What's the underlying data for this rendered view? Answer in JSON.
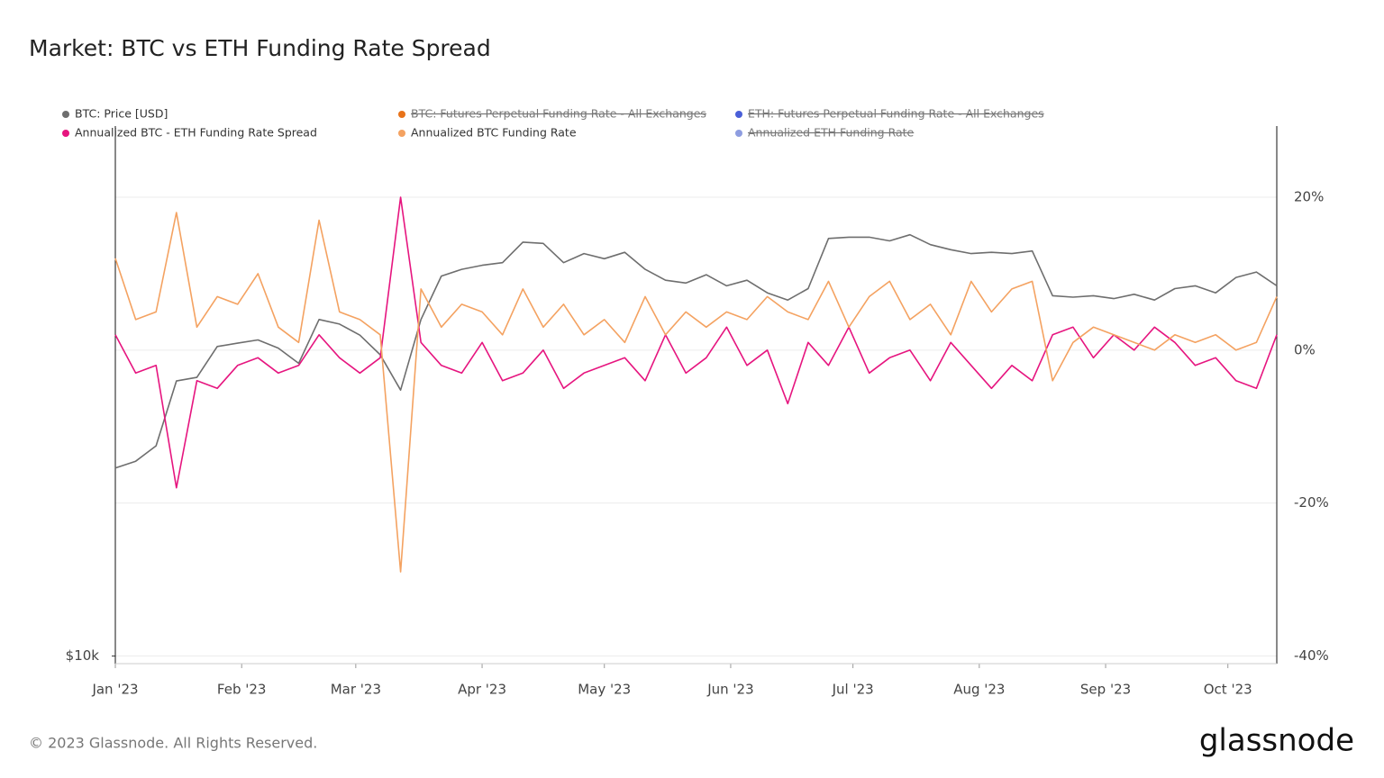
{
  "chart_data": {
    "type": "line",
    "title": "Market: BTC vs ETH Funding Rate Spread",
    "footer": "© 2023 Glassnode. All Rights Reserved.",
    "brand": "glassnode",
    "x": [
      0,
      5,
      10,
      15,
      20,
      25,
      30,
      35,
      40,
      45,
      50,
      55,
      60,
      65,
      70,
      75,
      80,
      85,
      90,
      95,
      100,
      105,
      110,
      115,
      120,
      125,
      130,
      135,
      140,
      145,
      150,
      155,
      160,
      165,
      170,
      175,
      180,
      185,
      190,
      195,
      200,
      205,
      210,
      215,
      220,
      225,
      230,
      235,
      240,
      245,
      250,
      255,
      260,
      265,
      270,
      275,
      280,
      285
    ],
    "xlim": [
      0,
      285
    ],
    "xticks": [
      {
        "value": 0,
        "label": "Jan '23"
      },
      {
        "value": 31,
        "label": "Feb '23"
      },
      {
        "value": 59,
        "label": "Mar '23"
      },
      {
        "value": 90,
        "label": "Apr '23"
      },
      {
        "value": 120,
        "label": "May '23"
      },
      {
        "value": 151,
        "label": "Jun '23"
      },
      {
        "value": 181,
        "label": "Jul '23"
      },
      {
        "value": 212,
        "label": "Aug '23"
      },
      {
        "value": 243,
        "label": "Sep '23"
      },
      {
        "value": 273,
        "label": "Oct '23"
      }
    ],
    "ylim": [
      9800,
      41000
    ],
    "ylog": true,
    "yticks": [
      {
        "value": 10000,
        "label": "$10k"
      }
    ],
    "y2lim": [
      -41,
      29.3
    ],
    "y2ticks": [
      {
        "value": 20,
        "label": "20%"
      },
      {
        "value": 0,
        "label": "0%"
      },
      {
        "value": -20,
        "label": "-20%"
      },
      {
        "value": -40,
        "label": "-40%"
      }
    ],
    "grid": true,
    "series": [
      {
        "name": "BTC: Price [USD]",
        "color": "#6e6e6e",
        "axis": "y",
        "values": [
          16500,
          16800,
          17500,
          20800,
          21000,
          22800,
          23000,
          23200,
          22700,
          21800,
          24500,
          24200,
          23500,
          22300,
          20300,
          24500,
          27500,
          28000,
          28300,
          28500,
          30100,
          30000,
          28500,
          29200,
          28800,
          29300,
          28000,
          27200,
          27000,
          27600,
          26800,
          27200,
          26300,
          25800,
          26600,
          30400,
          30500,
          30500,
          30200,
          30700,
          29900,
          29500,
          29200,
          29300,
          29200,
          29400,
          26100,
          26000,
          26100,
          25900,
          26200,
          25800,
          26600,
          26800,
          26300,
          27400,
          27800,
          26800
        ]
      },
      {
        "name": "Annualized BTC - ETH Funding Rate Spread",
        "color": "#e6157f",
        "axis": "y2",
        "values": [
          2,
          -3,
          -2,
          -18,
          -4,
          -5,
          -2,
          -1,
          -3,
          -2,
          2,
          -1,
          -3,
          -1,
          20,
          1,
          -2,
          -3,
          1,
          -4,
          -3,
          0,
          -5,
          -3,
          -2,
          -1,
          -4,
          2,
          -3,
          -1,
          3,
          -2,
          0,
          -7,
          1,
          -2,
          3,
          -3,
          -1,
          0,
          -4,
          1,
          -2,
          -5,
          -2,
          -4,
          2,
          3,
          -1,
          2,
          0,
          3,
          1,
          -2,
          -1,
          -4,
          -5,
          2
        ]
      },
      {
        "name": "Annualized BTC Funding Rate",
        "color": "#f4a261",
        "axis": "y2",
        "values": [
          12,
          4,
          5,
          18,
          3,
          7,
          6,
          10,
          3,
          1,
          17,
          5,
          4,
          2,
          -29,
          8,
          3,
          6,
          5,
          2,
          8,
          3,
          6,
          2,
          4,
          1,
          7,
          2,
          5,
          3,
          5,
          4,
          7,
          5,
          4,
          9,
          3,
          7,
          9,
          4,
          6,
          2,
          9,
          5,
          8,
          9,
          -4,
          1,
          3,
          2,
          1,
          0,
          2,
          1,
          2,
          0,
          1,
          7
        ]
      }
    ],
    "hidden_series": [
      {
        "name": "BTC: Futures Perpetual Funding Rate - All Exchanges",
        "color": "#e8731a"
      },
      {
        "name": "ETH: Futures Perpetual Funding Rate - All Exchanges",
        "color": "#4a5fd8"
      },
      {
        "name": "Annualized ETH Funding Rate",
        "color": "#8e9de0"
      }
    ]
  }
}
